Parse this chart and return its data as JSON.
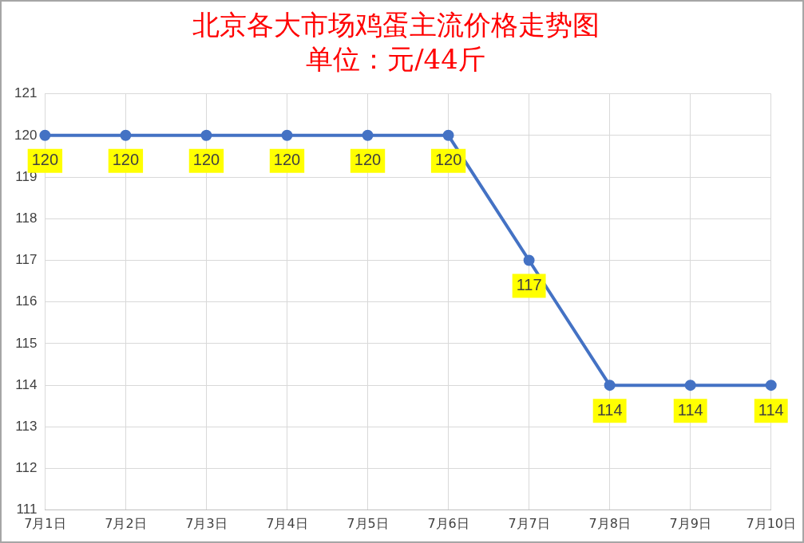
{
  "chart_data": {
    "type": "line",
    "title": "北京各大市场鸡蛋主流价格走势图",
    "subtitle": "单位：元/44斤",
    "categories": [
      "7月1日",
      "7月2日",
      "7月3日",
      "7月4日",
      "7月5日",
      "7月6日",
      "7月7日",
      "7月8日",
      "7月9日",
      "7月10日"
    ],
    "series": [
      {
        "color": "#4472c4",
        "values": [
          120,
          120,
          120,
          120,
          120,
          120,
          117,
          114,
          114,
          114
        ]
      }
    ],
    "ylim": [
      111,
      121
    ],
    "yticks": [
      111,
      112,
      113,
      114,
      115,
      116,
      117,
      118,
      119,
      120,
      121
    ],
    "grid": true,
    "legend": false,
    "marker": "circle",
    "line_style": "solid",
    "data_labels": true
  }
}
